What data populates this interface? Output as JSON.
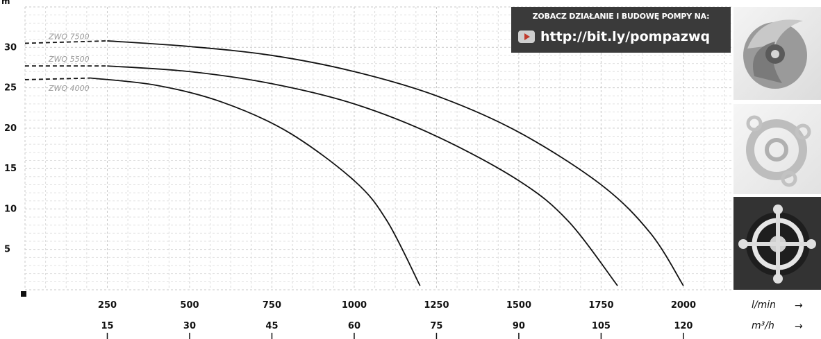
{
  "chart_data": {
    "type": "line",
    "y_unit_label": "m",
    "ylim": [
      0,
      35
    ],
    "yticks": [
      5,
      10,
      15,
      20,
      25,
      30
    ],
    "x_primary": {
      "unit": "l/min",
      "ticks": [
        250,
        500,
        750,
        1000,
        1250,
        1500,
        1750,
        2000
      ],
      "range": [
        0,
        2150
      ]
    },
    "x_secondary": {
      "unit": "m³/h",
      "ticks": [
        "15",
        "30",
        "45",
        "60",
        "75",
        "90",
        "105",
        "120"
      ]
    },
    "grid": true,
    "series": [
      {
        "name": "ZWQ 7500",
        "dashed_until": 250,
        "points": [
          [
            0,
            30.5
          ],
          [
            250,
            30.8
          ],
          [
            500,
            30.1
          ],
          [
            750,
            29
          ],
          [
            1000,
            27
          ],
          [
            1250,
            24
          ],
          [
            1500,
            19.5
          ],
          [
            1750,
            13
          ],
          [
            1900,
            7
          ],
          [
            2000,
            0.5
          ]
        ]
      },
      {
        "name": "ZWQ 5500",
        "dashed_until": 250,
        "points": [
          [
            0,
            27.7
          ],
          [
            250,
            27.7
          ],
          [
            500,
            27
          ],
          [
            750,
            25.5
          ],
          [
            1000,
            23
          ],
          [
            1250,
            19
          ],
          [
            1500,
            13.5
          ],
          [
            1650,
            8.5
          ],
          [
            1800,
            0.5
          ]
        ]
      },
      {
        "name": "ZWQ 4000",
        "dashed_until": 200,
        "points": [
          [
            0,
            26
          ],
          [
            200,
            26.2
          ],
          [
            400,
            25.3
          ],
          [
            600,
            23.2
          ],
          [
            800,
            19.5
          ],
          [
            1000,
            13.5
          ],
          [
            1100,
            8.5
          ],
          [
            1200,
            0.5
          ]
        ]
      }
    ],
    "arrow_glyph": "→"
  },
  "promo": {
    "heading": "ZOBACZ DZIAŁANIE I BUDOWĘ POMPY NA:",
    "url": "http://bit.ly/pompazwq",
    "icon": "youtube-icon"
  },
  "side_images": [
    "impeller-image",
    "pump-flange-image",
    "pump-housing-image"
  ]
}
